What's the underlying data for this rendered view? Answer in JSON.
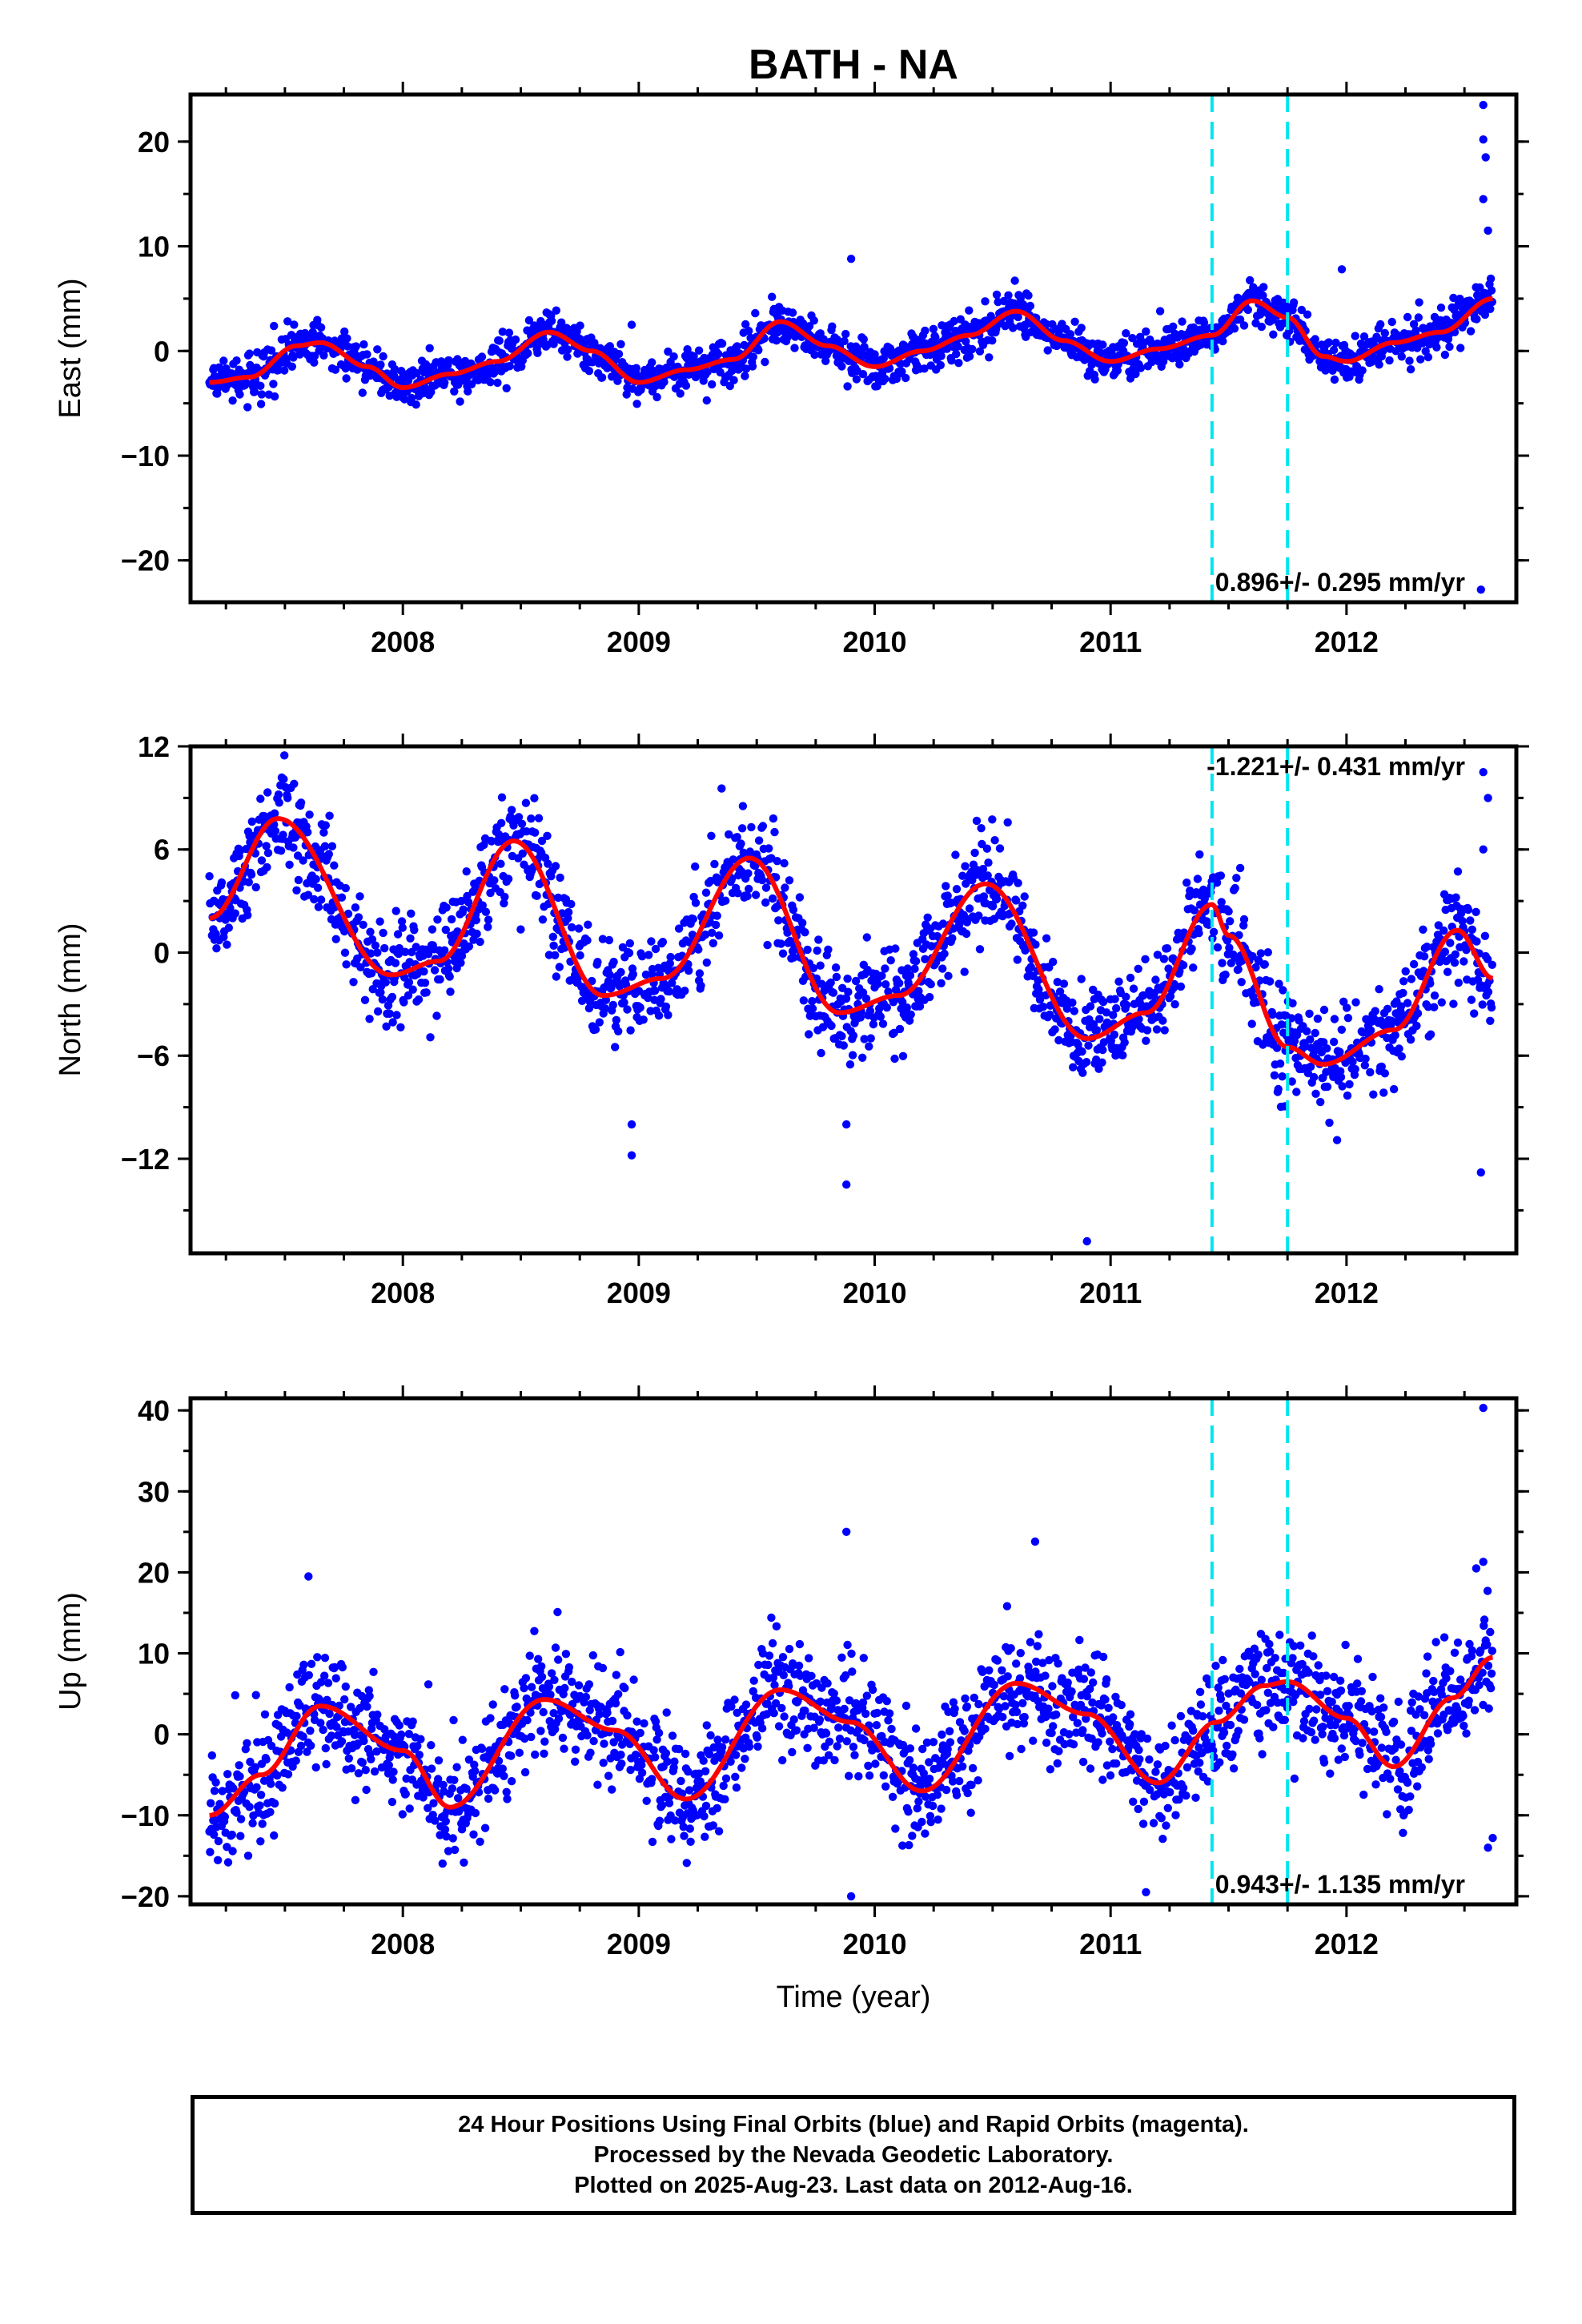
{
  "title": "BATH - NA",
  "footer": {
    "line1": "24 Hour Positions Using Final Orbits (blue) and Rapid Orbits (magenta).",
    "line2": "Processed by the Nevada Geodetic Laboratory.",
    "line3": "Plotted on 2025-Aug-23. Last data on 2012-Aug-16."
  },
  "colors": {
    "points": "#0000ff",
    "fit": "#ff0000",
    "event_lines": "#00e5ee",
    "frame": "#000000"
  },
  "chart_data": [
    {
      "type": "scatter",
      "component": "east",
      "ylabel": "East (mm)",
      "xlabel": "",
      "xlim": [
        2007.1,
        2012.72
      ],
      "ylim": [
        -24,
        24.5
      ],
      "xticks": [
        2008,
        2009,
        2010,
        2011,
        2012
      ],
      "yticks": [
        -20,
        -10,
        0,
        10,
        20
      ],
      "grid": false,
      "rate_label": "0.896+/- 0.295 mm/yr",
      "rate_label_position": "bottom-right",
      "event_lines_x": [
        2011.43,
        2011.75
      ],
      "series_params": {
        "start": 2007.18,
        "end": 2012.62,
        "trend_mm_per_yr": 0.896,
        "offset": -3.8,
        "seasonal_amp": 2.3,
        "seasonal_phase_yr": 0.35,
        "scatter_sigma": 1.0
      },
      "fit_line": {
        "x": [
          2007.18,
          2007.35,
          2007.55,
          2007.65,
          2007.85,
          2008.0,
          2008.2,
          2008.4,
          2008.62,
          2008.8,
          2009.0,
          2009.2,
          2009.4,
          2009.6,
          2009.8,
          2010.0,
          2010.2,
          2010.4,
          2010.6,
          2010.8,
          2011.0,
          2011.2,
          2011.43,
          2011.6,
          2011.75,
          2011.9,
          2012.0,
          2012.2,
          2012.4,
          2012.62
        ],
        "y": [
          -3.0,
          -2.5,
          0.5,
          0.8,
          -1.5,
          -3.5,
          -2.2,
          -1.0,
          1.8,
          0.0,
          -3.0,
          -1.8,
          -0.8,
          2.8,
          0.5,
          -1.5,
          0.0,
          1.5,
          3.8,
          1.0,
          -1.0,
          0.2,
          1.5,
          4.8,
          3.2,
          -0.5,
          -1.0,
          0.8,
          1.8,
          5.0
        ]
      },
      "outliers": [
        [
          2009.9,
          8.8
        ],
        [
          2011.98,
          7.8
        ],
        [
          2008.97,
          2.5
        ],
        [
          2012.58,
          23.5
        ],
        [
          2012.58,
          20.2
        ],
        [
          2012.59,
          18.5
        ],
        [
          2012.58,
          14.5
        ],
        [
          2012.6,
          11.5
        ],
        [
          2012.57,
          -22.8
        ]
      ]
    },
    {
      "type": "scatter",
      "component": "north",
      "ylabel": "North (mm)",
      "xlabel": "",
      "xlim": [
        2007.1,
        2012.72
      ],
      "ylim": [
        -17.5,
        12
      ],
      "xticks": [
        2008,
        2009,
        2010,
        2011,
        2012
      ],
      "yticks": [
        -12,
        -6,
        0,
        6,
        12
      ],
      "grid": false,
      "rate_label": "-1.221+/- 0.431 mm/yr",
      "rate_label_position": "top-right",
      "event_lines_x": [
        2011.43,
        2011.75
      ],
      "series_params": {
        "start": 2007.18,
        "end": 2012.62,
        "trend_mm_per_yr": -1.221,
        "offset": 4.0,
        "seasonal_amp": 4.5,
        "seasonal_phase_yr": 0.22,
        "scatter_sigma": 1.5
      },
      "fit_line": {
        "x": [
          2007.18,
          2007.47,
          2007.95,
          2008.15,
          2008.47,
          2008.85,
          2009.1,
          2009.47,
          2009.85,
          2010.1,
          2010.47,
          2010.9,
          2011.15,
          2011.43,
          2011.5,
          2011.75,
          2011.9,
          2012.2,
          2012.47,
          2012.62
        ],
        "y": [
          2.0,
          7.8,
          -1.3,
          -0.5,
          6.5,
          -2.5,
          -1.5,
          5.5,
          -3.5,
          -2.5,
          4.0,
          -5.0,
          -3.5,
          2.8,
          1.0,
          -5.5,
          -6.5,
          -4.5,
          1.3,
          -1.5
        ]
      },
      "outliers": [
        [
          2008.97,
          -10.0
        ],
        [
          2008.97,
          -11.8
        ],
        [
          2009.88,
          -10.0
        ],
        [
          2009.88,
          -13.5
        ],
        [
          2010.9,
          -16.8
        ],
        [
          2012.58,
          10.5
        ],
        [
          2012.6,
          9.0
        ],
        [
          2012.57,
          -12.8
        ],
        [
          2012.58,
          6.0
        ]
      ]
    },
    {
      "type": "scatter",
      "component": "up",
      "ylabel": "Up (mm)",
      "xlabel": "Time (year)",
      "xlim": [
        2007.1,
        2012.72
      ],
      "ylim": [
        -21,
        41.5
      ],
      "xticks": [
        2008,
        2009,
        2010,
        2011,
        2012
      ],
      "yticks": [
        -20,
        -10,
        0,
        10,
        20,
        30,
        40
      ],
      "grid": false,
      "rate_label": "0.943+/- 1.135 mm/yr",
      "rate_label_position": "bottom-right",
      "event_lines_x": [
        2011.43,
        2011.75
      ],
      "series_params": {
        "start": 2007.18,
        "end": 2012.62,
        "trend_mm_per_yr": 0.943,
        "offset": -1.5,
        "seasonal_amp": 6.5,
        "seasonal_phase_yr": 0.35,
        "scatter_sigma": 3.5
      },
      "fit_line": {
        "x": [
          2007.18,
          2007.4,
          2007.65,
          2008.0,
          2008.2,
          2008.6,
          2008.9,
          2009.2,
          2009.6,
          2009.9,
          2010.2,
          2010.6,
          2010.9,
          2011.2,
          2011.45,
          2011.65,
          2011.75,
          2012.0,
          2012.2,
          2012.45,
          2012.62
        ],
        "y": [
          -10.0,
          -5.0,
          3.5,
          -2.0,
          -9.0,
          4.3,
          0.5,
          -8.0,
          5.5,
          1.5,
          -7.0,
          6.3,
          2.5,
          -6.0,
          1.5,
          6.0,
          6.5,
          2.0,
          -4.0,
          4.5,
          9.5
        ]
      },
      "outliers": [
        [
          2009.88,
          25.0
        ],
        [
          2010.68,
          23.8
        ],
        [
          2009.9,
          -20.0
        ],
        [
          2012.58,
          40.3
        ],
        [
          2012.58,
          21.3
        ],
        [
          2012.55,
          20.5
        ],
        [
          2012.6,
          -14.0
        ],
        [
          2012.62,
          -12.8
        ],
        [
          2011.15,
          -19.5
        ],
        [
          2007.6,
          19.5
        ]
      ]
    }
  ]
}
